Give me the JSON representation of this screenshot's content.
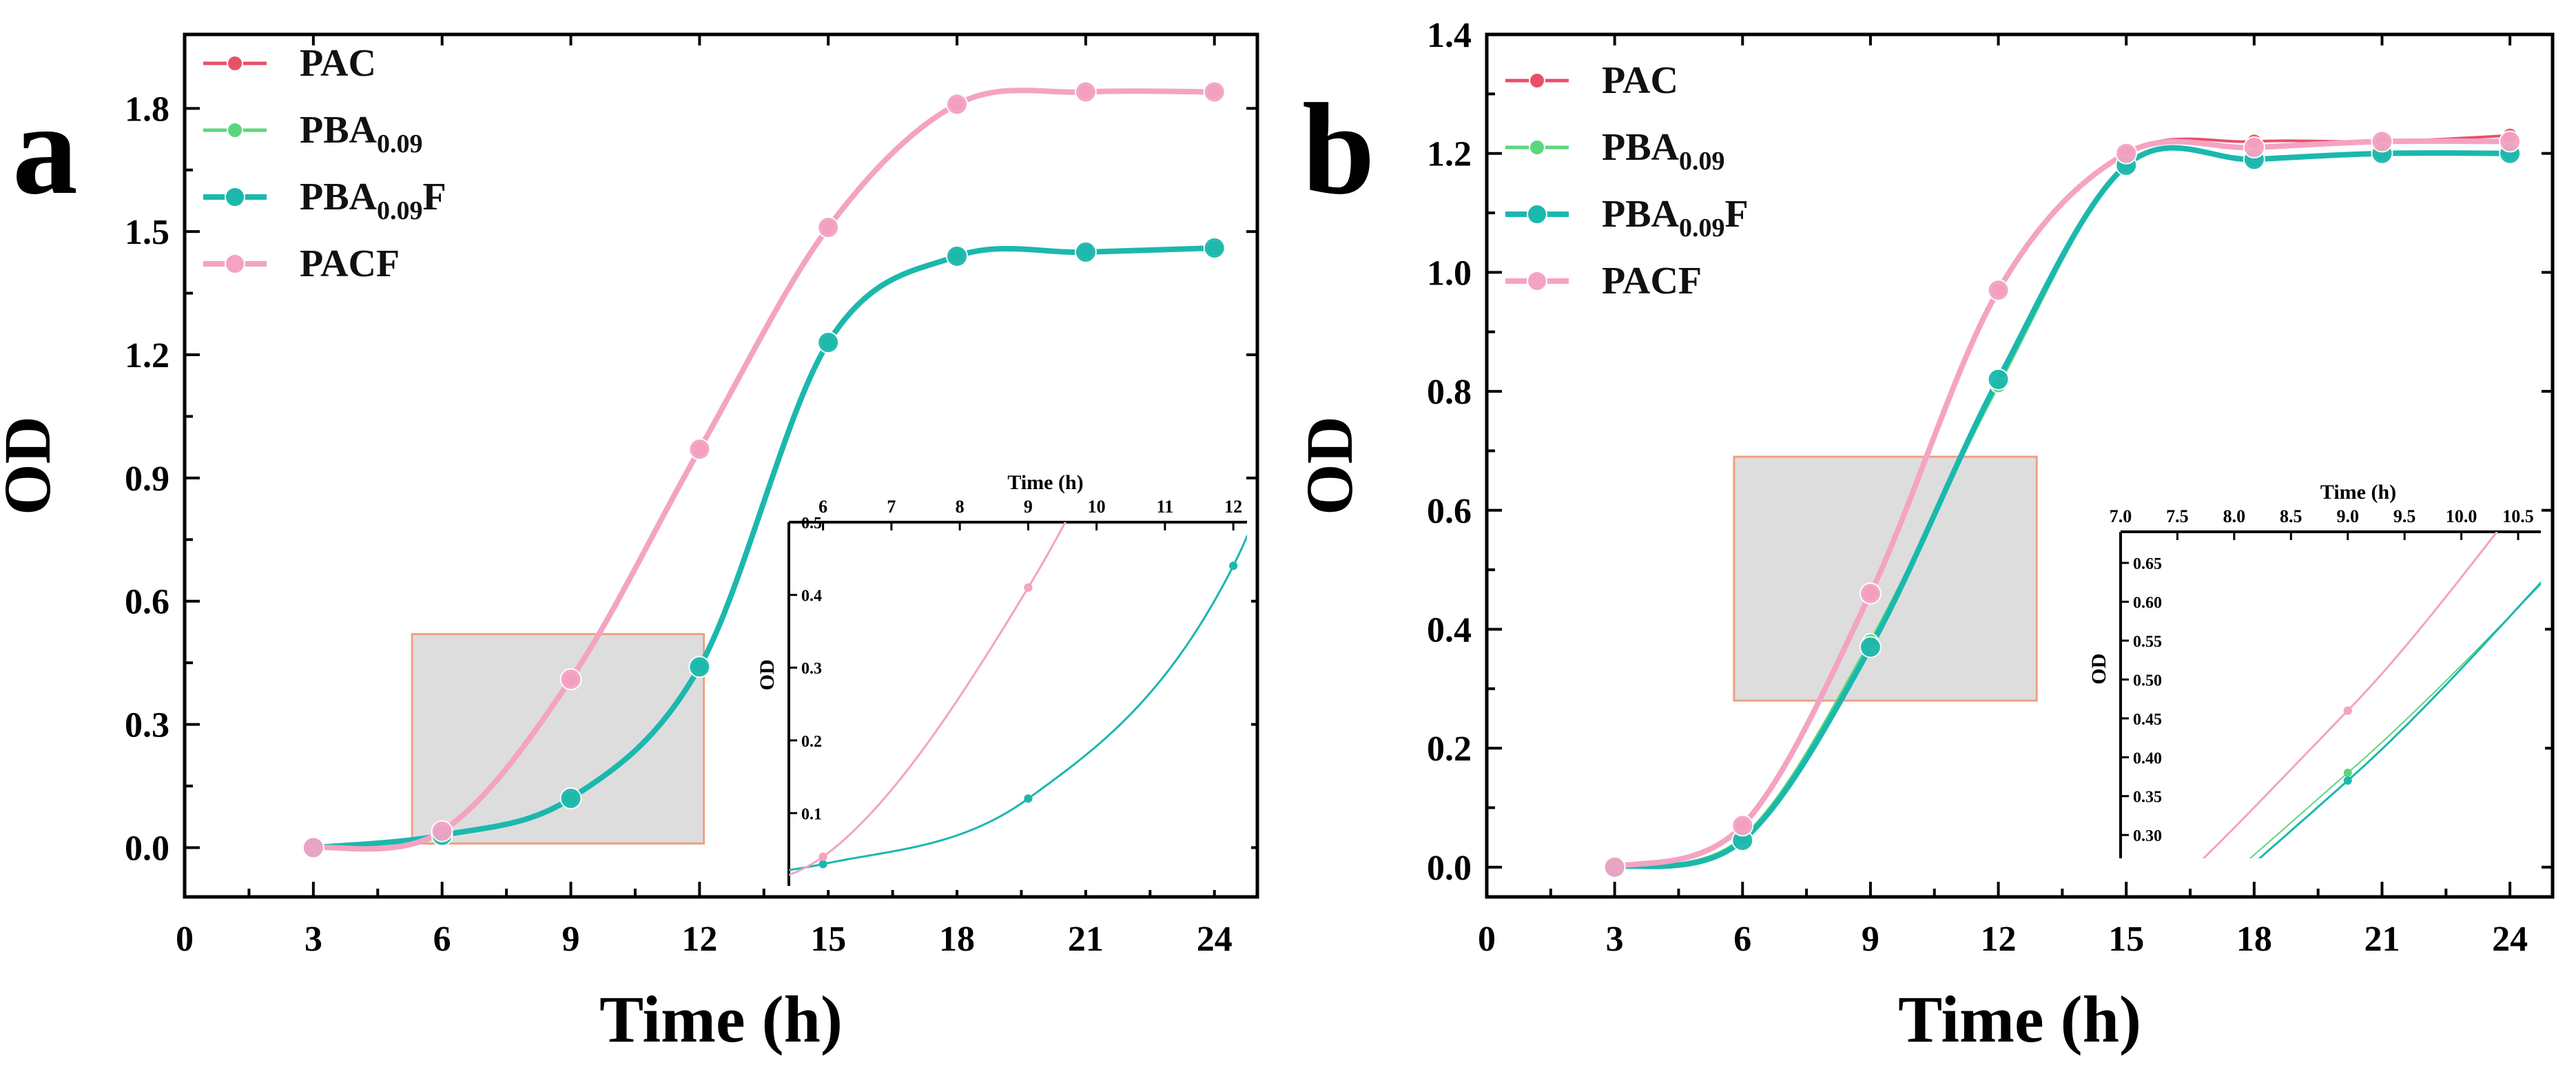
{
  "chart_data": [
    {
      "type": "line",
      "panel_label": "a",
      "xlabel": "Time (h)",
      "ylabel": "OD",
      "xlim": [
        0,
        25
      ],
      "ylim": [
        -0.12,
        1.98
      ],
      "xticks": [
        0,
        3,
        6,
        9,
        12,
        15,
        18,
        21,
        24
      ],
      "yticks": [
        0.0,
        0.3,
        0.6,
        0.9,
        1.2,
        1.5,
        1.8
      ],
      "ytick_labels": [
        "0.0",
        "0.3",
        "0.6",
        "0.9",
        "1.2",
        "1.5",
        "1.8"
      ],
      "legend_position": "top-left",
      "series": [
        {
          "name": "PAC",
          "legend_main": "PAC",
          "legend_sub": "",
          "legend_suffix": "",
          "color": "#e8506a",
          "marker_size": "small",
          "x": [
            3,
            6,
            9,
            12,
            15,
            18,
            21,
            24
          ],
          "y": [
            0.0,
            0.04,
            0.41,
            0.97,
            1.51,
            1.81,
            1.84,
            1.84
          ]
        },
        {
          "name": "PBA0.09",
          "legend_main": "PBA",
          "legend_sub": "0.09",
          "legend_suffix": "",
          "color": "#5cd67c",
          "marker_size": "small",
          "x": [
            3,
            6,
            9,
            12,
            15,
            18,
            21,
            24
          ],
          "y": [
            0.0,
            0.03,
            0.12,
            0.44,
            1.23,
            1.44,
            1.45,
            1.46
          ]
        },
        {
          "name": "PBA0.09F",
          "legend_main": "PBA",
          "legend_sub": "0.09",
          "legend_suffix": "F",
          "color": "#1bb8ad",
          "marker_size": "large",
          "x": [
            3,
            6,
            9,
            12,
            15,
            18,
            21,
            24
          ],
          "y": [
            0.0,
            0.03,
            0.12,
            0.44,
            1.23,
            1.44,
            1.45,
            1.46
          ]
        },
        {
          "name": "PACF",
          "legend_main": "PACF",
          "legend_sub": "",
          "legend_suffix": "",
          "color": "#f4a3c3",
          "marker_size": "large",
          "x": [
            3,
            6,
            9,
            12,
            15,
            18,
            21,
            24
          ],
          "y": [
            0.0,
            0.04,
            0.41,
            0.97,
            1.51,
            1.81,
            1.84,
            1.84
          ]
        }
      ],
      "zoom_region": {
        "x": [
          5.3,
          12.1
        ],
        "y": [
          0.01,
          0.52
        ]
      },
      "inset": {
        "xlabel": "Time (h)",
        "ylabel": "OD",
        "xlim": [
          5.5,
          12.2
        ],
        "ylim": [
          0,
          0.5
        ],
        "xticks": [
          6,
          7,
          8,
          9,
          10,
          11,
          12
        ],
        "yticks": [
          0.1,
          0.2,
          0.3,
          0.4,
          0.5
        ],
        "ytick_labels": [
          "0.1",
          "0.2",
          "0.3",
          "0.4",
          "0.5"
        ],
        "xaxis_position": "top"
      }
    },
    {
      "type": "line",
      "panel_label": "b",
      "xlabel": "Time (h)",
      "ylabel": "OD",
      "xlim": [
        0,
        25
      ],
      "ylim": [
        -0.05,
        1.4
      ],
      "xticks": [
        0,
        3,
        6,
        9,
        12,
        15,
        18,
        21,
        24
      ],
      "yticks": [
        0.0,
        0.2,
        0.4,
        0.6,
        0.8,
        1.0,
        1.2,
        1.4
      ],
      "ytick_labels": [
        "0.0",
        "0.2",
        "0.4",
        "0.6",
        "0.8",
        "1.0",
        "1.2",
        "1.4"
      ],
      "legend_position": "top-left",
      "series": [
        {
          "name": "PAC",
          "legend_main": "PAC",
          "legend_sub": "",
          "legend_suffix": "",
          "color": "#e8506a",
          "marker_size": "small",
          "x": [
            3,
            6,
            9,
            12,
            15,
            18,
            21,
            24
          ],
          "y": [
            0.0,
            0.07,
            0.46,
            0.97,
            1.2,
            1.22,
            1.22,
            1.23
          ]
        },
        {
          "name": "PBA0.09",
          "legend_main": "PBA",
          "legend_sub": "0.09",
          "legend_suffix": "",
          "color": "#5cd67c",
          "marker_size": "small",
          "x": [
            3,
            6,
            9,
            12,
            15,
            18,
            21,
            24
          ],
          "y": [
            0.0,
            0.05,
            0.38,
            0.81,
            1.18,
            1.19,
            1.2,
            1.2
          ]
        },
        {
          "name": "PBA0.09F",
          "legend_main": "PBA",
          "legend_sub": "0.09",
          "legend_suffix": "F",
          "color": "#1bb8ad",
          "marker_size": "large",
          "x": [
            3,
            6,
            9,
            12,
            15,
            18,
            21,
            24
          ],
          "y": [
            0.0,
            0.045,
            0.37,
            0.82,
            1.18,
            1.19,
            1.2,
            1.2
          ]
        },
        {
          "name": "PACF",
          "legend_main": "PACF",
          "legend_sub": "",
          "legend_suffix": "",
          "color": "#f4a3c3",
          "marker_size": "large",
          "x": [
            3,
            6,
            9,
            12,
            15,
            18,
            21,
            24
          ],
          "y": [
            0.0,
            0.07,
            0.46,
            0.97,
            1.2,
            1.21,
            1.22,
            1.22
          ]
        }
      ],
      "zoom_region": {
        "x": [
          5.8,
          12.9
        ],
        "y": [
          0.28,
          0.69
        ]
      },
      "inset": {
        "xlabel": "Time (h)",
        "ylabel": "OD",
        "xlim": [
          7.0,
          10.7
        ],
        "ylim": [
          0.27,
          0.69
        ],
        "xticks": [
          7.0,
          7.5,
          8.0,
          8.5,
          9.0,
          9.5,
          10.0,
          10.5
        ],
        "yticks": [
          0.3,
          0.35,
          0.4,
          0.45,
          0.5,
          0.55,
          0.6,
          0.65
        ],
        "xtick_labels": [
          "7.0",
          "7.5",
          "8.0",
          "8.5",
          "9.0",
          "9.5",
          "10.0",
          "10.5"
        ],
        "ytick_labels": [
          "0.30",
          "0.35",
          "0.40",
          "0.45",
          "0.50",
          "0.55",
          "0.60",
          "0.65"
        ],
        "xaxis_position": "top"
      }
    }
  ]
}
